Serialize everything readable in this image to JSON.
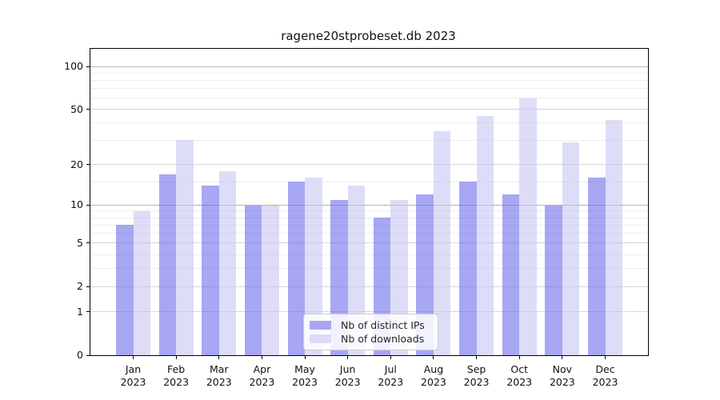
{
  "title": "ragene20stprobeset.db 2023",
  "chart_data": {
    "type": "bar",
    "title": "ragene20stprobeset.db 2023",
    "categories": [
      "Jan",
      "Feb",
      "Mar",
      "Apr",
      "May",
      "Jun",
      "Jul",
      "Aug",
      "Sep",
      "Oct",
      "Nov",
      "Dec"
    ],
    "year": "2023",
    "series": [
      {
        "name": "Nb of distinct IPs",
        "values": [
          7,
          17,
          14,
          10,
          15,
          11,
          8,
          12,
          15,
          12,
          10,
          16
        ]
      },
      {
        "name": "Nb of downloads",
        "values": [
          9,
          30,
          18,
          10,
          16,
          14,
          11,
          35,
          45,
          60,
          29,
          42
        ]
      }
    ],
    "y_scale": "log1p",
    "y_max": 133,
    "y_ticks": [
      0,
      1,
      2,
      5,
      10,
      20,
      50,
      100
    ],
    "y_minor_gridlines": [
      3,
      4,
      6,
      7,
      8,
      9,
      15,
      30,
      40,
      60,
      70,
      80,
      90
    ],
    "grid": true,
    "legend_position": "lower center",
    "xlabel": "",
    "ylabel": ""
  },
  "legend": {
    "items": [
      "Nb of distinct IPs",
      "Nb of downloads"
    ]
  },
  "colors": {
    "bar_distinct_ips": "#a7a7f1",
    "bar_downloads": "#dcdcf8",
    "bar_distinct_ips_rgba": "rgba(95,95,233,0.55)",
    "bar_downloads_rgba": "rgba(193,193,242,0.55)",
    "grid_minor": "#ededed",
    "grid_major": "#d7d7d7",
    "grid_major_dark": "#b3b3b3",
    "axis": "#000000",
    "text": "#111111"
  }
}
